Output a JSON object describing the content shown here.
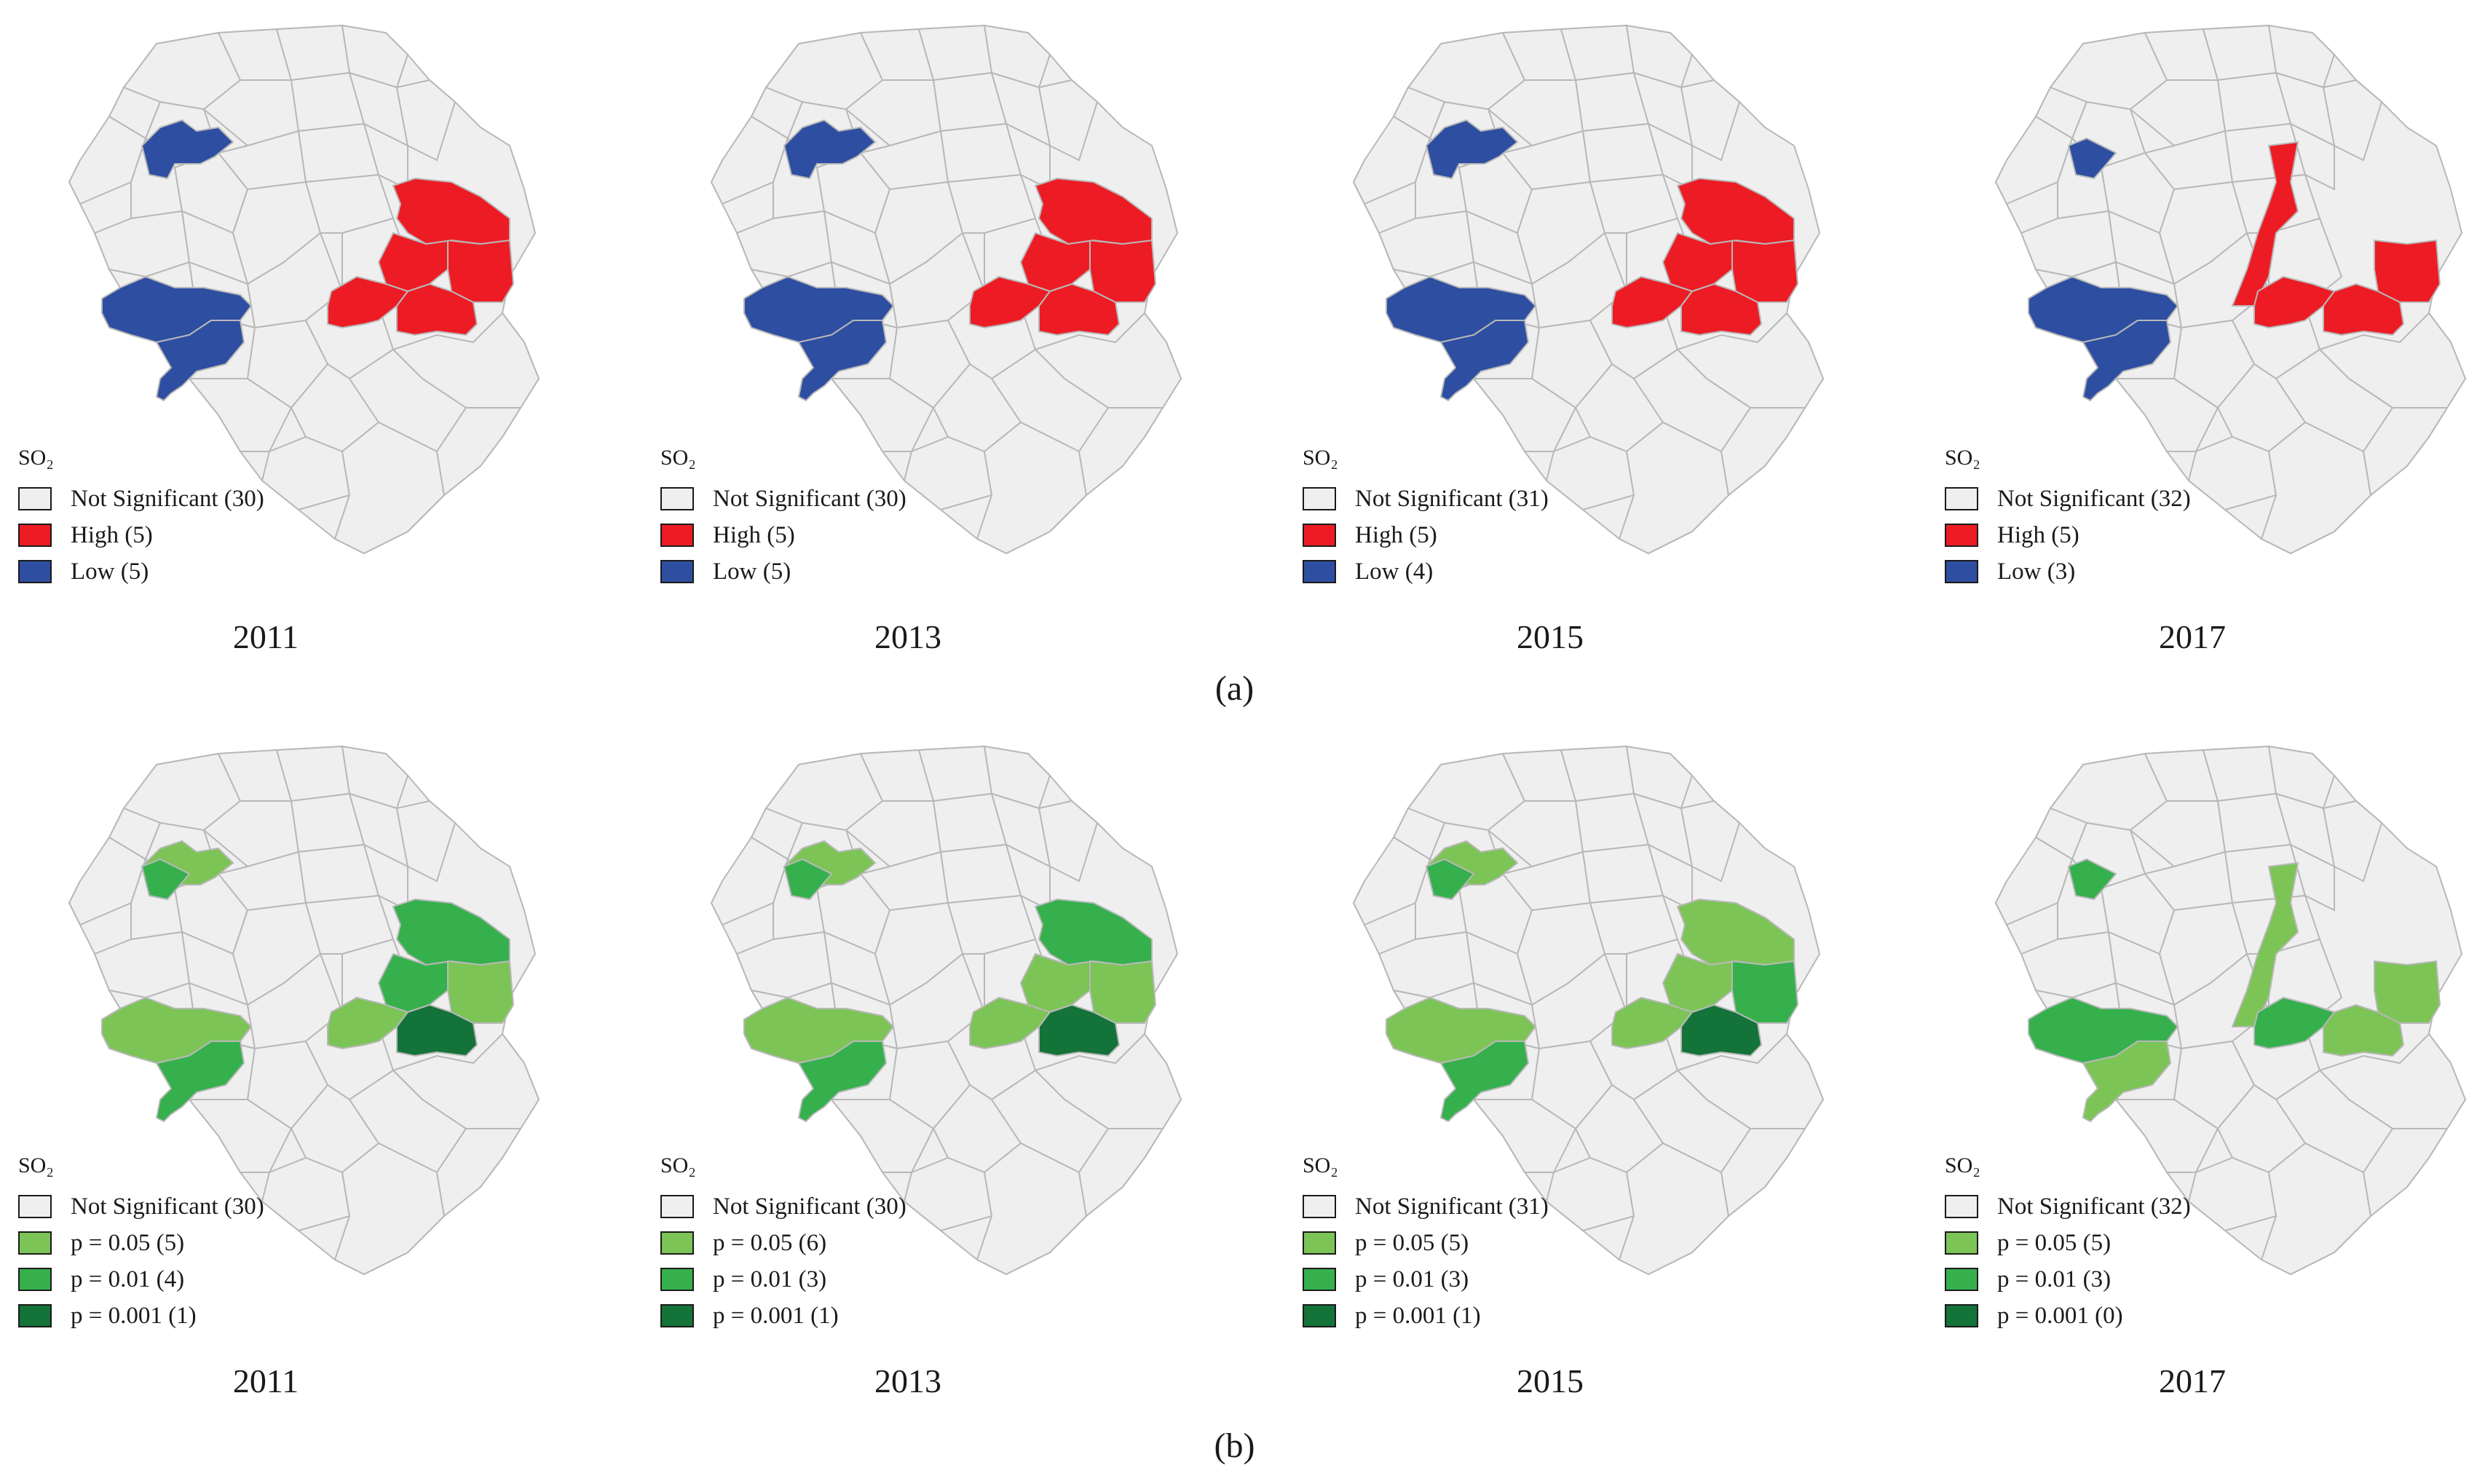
{
  "colors": {
    "not_significant": "#efefef",
    "high": "#ed1c24",
    "low": "#2e4ea1",
    "p005": "#7dc457",
    "p001": "#35b04d",
    "p0001": "#137338",
    "border": "#b8b8b8"
  },
  "panels": [
    {
      "label": "(a)",
      "maps": [
        {
          "year": "2011",
          "legend_title": "SO₂",
          "legend": [
            {
              "label": "Not Significant (30)",
              "color": "#efefef"
            },
            {
              "label": "High (5)",
              "color": "#ed1c24"
            },
            {
              "label": "Low (5)",
              "color": "#2e4ea1"
            }
          ],
          "clusters": {
            "northwest": "#2e4ea1",
            "west": "#2e4ea1",
            "southwest": "#2e4ea1",
            "east": "#ed1c24",
            "east2": "#ed1c24",
            "east3": "#ed1c24",
            "northeast": "#ed1c24",
            "center_e": "#ed1c24"
          }
        },
        {
          "year": "2013",
          "legend_title": "SO₂",
          "legend": [
            {
              "label": "Not Significant (30)",
              "color": "#efefef"
            },
            {
              "label": "High (5)",
              "color": "#ed1c24"
            },
            {
              "label": "Low (5)",
              "color": "#2e4ea1"
            }
          ],
          "clusters": {
            "northwest": "#2e4ea1",
            "west": "#2e4ea1",
            "southwest": "#2e4ea1",
            "east": "#ed1c24",
            "east2": "#ed1c24",
            "east3": "#ed1c24",
            "northeast": "#ed1c24",
            "center_e": "#ed1c24"
          }
        },
        {
          "year": "2015",
          "legend_title": "SO₂",
          "legend": [
            {
              "label": "Not Significant (31)",
              "color": "#efefef"
            },
            {
              "label": "High (5)",
              "color": "#ed1c24"
            },
            {
              "label": "Low (4)",
              "color": "#2e4ea1"
            }
          ],
          "clusters": {
            "northwest": "#2e4ea1",
            "west": "#2e4ea1",
            "southwest": "#2e4ea1",
            "east": "#ed1c24",
            "east2": "#ed1c24",
            "east3": "#ed1c24",
            "northeast": "#ed1c24",
            "center_e": "#ed1c24"
          }
        },
        {
          "year": "2017",
          "legend_title": "SO₂",
          "legend": [
            {
              "label": "Not Significant (32)",
              "color": "#efefef"
            },
            {
              "label": "High (5)",
              "color": "#ed1c24"
            },
            {
              "label": "Low (3)",
              "color": "#2e4ea1"
            }
          ],
          "clusters": {
            "northwest_small": "#2e4ea1",
            "west": "#2e4ea1",
            "southwest": "#2e4ea1",
            "north_strip": "#ed1c24",
            "center_e": "#ed1c24",
            "east": "#ed1c24",
            "east3": "#ed1c24"
          }
        }
      ]
    },
    {
      "label": "(b)",
      "maps": [
        {
          "year": "2011",
          "legend_title": "SO₂",
          "legend": [
            {
              "label": "Not Significant (30)",
              "color": "#efefef"
            },
            {
              "label": "p = 0.05 (5)",
              "color": "#7dc457"
            },
            {
              "label": "p = 0.01 (4)",
              "color": "#35b04d"
            },
            {
              "label": "p = 0.001 (1)",
              "color": "#137338"
            }
          ],
          "clusters": {
            "northwest": "#7dc457",
            "northwest_small": "#35b04d",
            "west": "#7dc457",
            "southwest": "#35b04d",
            "northeast": "#35b04d",
            "east2": "#35b04d",
            "east3": "#7dc457",
            "center_e": "#7dc457",
            "east": "#137338"
          }
        },
        {
          "year": "2013",
          "legend_title": "SO₂",
          "legend": [
            {
              "label": "Not Significant (30)",
              "color": "#efefef"
            },
            {
              "label": "p = 0.05 (6)",
              "color": "#7dc457"
            },
            {
              "label": "p = 0.01 (3)",
              "color": "#35b04d"
            },
            {
              "label": "p = 0.001 (1)",
              "color": "#137338"
            }
          ],
          "clusters": {
            "northwest": "#7dc457",
            "northwest_small": "#35b04d",
            "west": "#7dc457",
            "southwest": "#35b04d",
            "northeast": "#35b04d",
            "east2": "#7dc457",
            "east3": "#7dc457",
            "center_e": "#7dc457",
            "east": "#137338"
          }
        },
        {
          "year": "2015",
          "legend_title": "SO₂",
          "legend": [
            {
              "label": "Not Significant (31)",
              "color": "#efefef"
            },
            {
              "label": "p = 0.05 (5)",
              "color": "#7dc457"
            },
            {
              "label": "p = 0.01 (3)",
              "color": "#35b04d"
            },
            {
              "label": "p = 0.001 (1)",
              "color": "#137338"
            }
          ],
          "clusters": {
            "northwest": "#7dc457",
            "northwest_small": "#35b04d",
            "west": "#7dc457",
            "southwest": "#35b04d",
            "northeast": "#7dc457",
            "east2": "#7dc457",
            "east3": "#35b04d",
            "center_e": "#7dc457",
            "east": "#137338"
          }
        },
        {
          "year": "2017",
          "legend_title": "SO₂",
          "legend": [
            {
              "label": "Not Significant (32)",
              "color": "#efefef"
            },
            {
              "label": "p = 0.05 (5)",
              "color": "#7dc457"
            },
            {
              "label": "p = 0.01 (3)",
              "color": "#35b04d"
            },
            {
              "label": "p = 0.001 (0)",
              "color": "#137338"
            }
          ],
          "clusters": {
            "northwest_small": "#35b04d",
            "west": "#35b04d",
            "southwest": "#7dc457",
            "north_strip": "#7dc457",
            "center_e": "#35b04d",
            "east": "#7dc457",
            "east3": "#7dc457"
          }
        }
      ]
    }
  ]
}
